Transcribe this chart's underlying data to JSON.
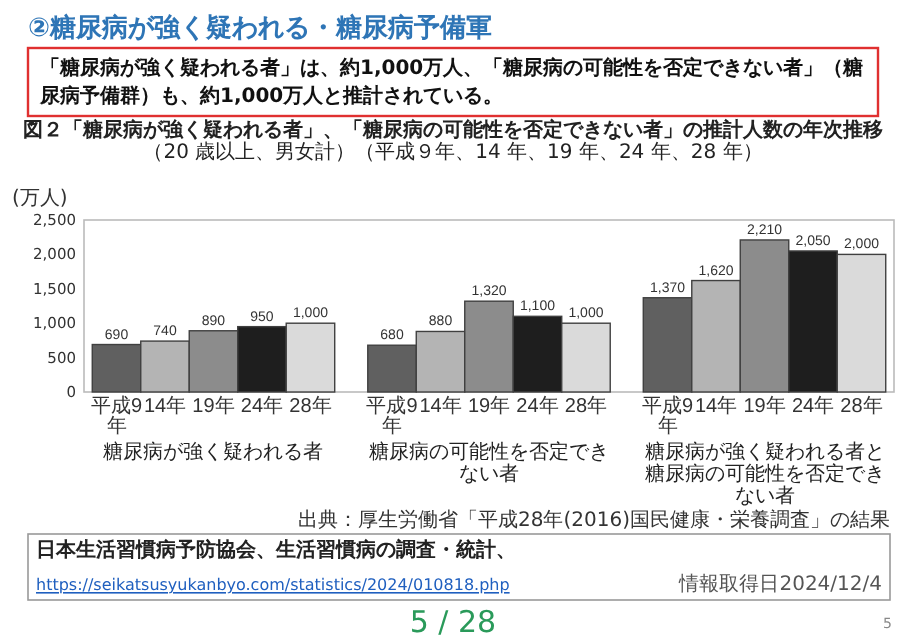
{
  "chart_data": {
    "type": "bar",
    "title": "図２「糖尿病が強く疑われる者」、「糖尿病の可能性を否定できない者」の推計人数の年次推移",
    "subtitle": "（20 歳以上、男女計）（平成９年、14 年、19 年、24 年、28 年）",
    "ylabel": "(万人)",
    "categories": [
      "糖尿病が強く疑われる者",
      "糖尿病の可能性を否定できない者",
      "糖尿病が強く疑われる者と糖尿病の可能性を否定できない者"
    ],
    "series": [
      {
        "name": "平成9年",
        "color": "#606060",
        "values": [
          690,
          680,
          1370
        ],
        "value_labels": [
          "690",
          "680",
          "1,370"
        ]
      },
      {
        "name": "14年",
        "color": "#b4b4b4",
        "values": [
          740,
          880,
          1620
        ],
        "value_labels": [
          "740",
          "880",
          "1,620"
        ]
      },
      {
        "name": "19年",
        "color": "#8c8c8c",
        "values": [
          890,
          1320,
          2210
        ],
        "value_labels": [
          "890",
          "1,320",
          "2,210"
        ]
      },
      {
        "name": "24年",
        "color": "#1e1e1e",
        "values": [
          950,
          1100,
          2050
        ],
        "value_labels": [
          "950",
          "1,100",
          "2,050"
        ]
      },
      {
        "name": "28年",
        "color": "#dadada",
        "values": [
          1000,
          1000,
          2000
        ],
        "value_labels": [
          "1,000",
          "1,000",
          "2,000"
        ]
      }
    ],
    "ylim": [
      0,
      2500
    ],
    "yticks": [
      0,
      500,
      {
        "value": 1000,
        "label": "1,000"
      },
      {
        "value": 1500,
        "label": "1,500"
      },
      {
        "value": 2000,
        "label": "2,000"
      },
      {
        "value": 2500,
        "label": "2,500"
      }
    ],
    "grid": false,
    "legend": false,
    "annotations": [
      "②糖尿病が強く疑われる・糖尿病予備軍",
      "「糖尿病が強く疑われる者」は、約1,000万人、「糖尿病の可能性を否定できない者」（糖尿病予備群）も、約1,000万人と推計されている。",
      "出典：厚生労働省「平成28年(2016)国民健康・栄養調査」の結果",
      "日本生活習慣病予防協会、生活習慣病の調査・統計、",
      "https://seikatsusyukanbyo.com/statistics/2024/010818.php",
      "情報取得日2024/12/4",
      "5 / 28",
      "5"
    ]
  }
}
